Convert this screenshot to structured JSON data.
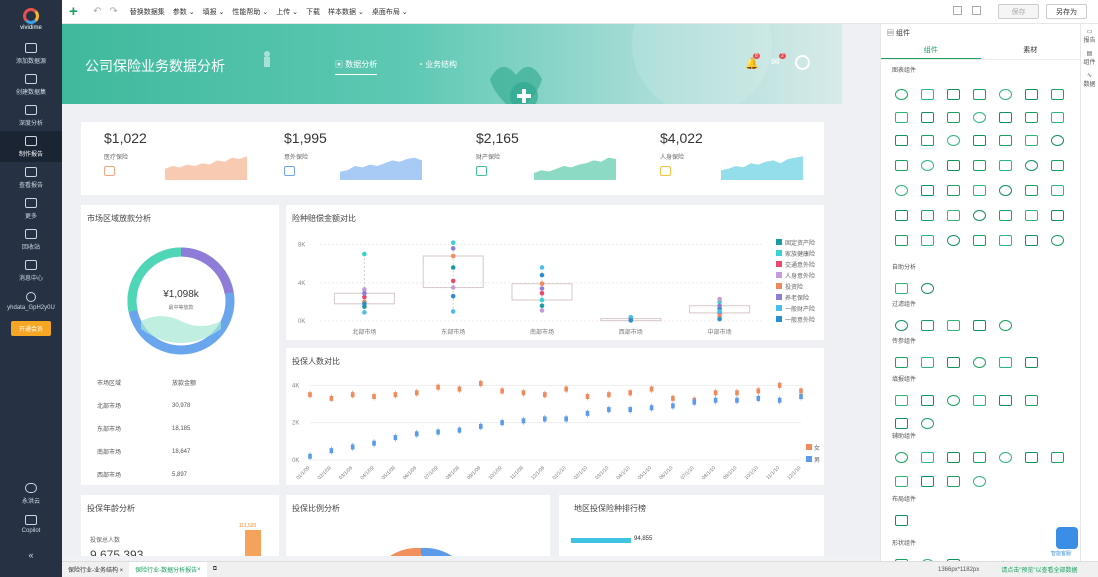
{
  "app": {
    "logo": "vividime"
  },
  "left_nav": [
    {
      "label": "添加数据源",
      "icon": "database-icon"
    },
    {
      "label": "创建数据集",
      "icon": "cube-icon"
    },
    {
      "label": "深度分析",
      "icon": "fan-icon"
    },
    {
      "label": "制作报告",
      "icon": "report-icon",
      "active": true
    },
    {
      "label": "查看报告",
      "icon": "view-report-icon"
    },
    {
      "label": "更多",
      "icon": "menu-icon"
    },
    {
      "label": "回收站",
      "icon": "trash-icon"
    },
    {
      "label": "消息中心",
      "icon": "bell-icon"
    },
    {
      "label": "yhdata_GpH2y0U",
      "icon": "user-icon"
    }
  ],
  "vip_label": "开通会员",
  "left_bottom": [
    {
      "label": "永洪云",
      "icon": "cloud-icon"
    },
    {
      "label": "Copilot",
      "icon": "copilot-icon"
    }
  ],
  "collapse_label": "«",
  "toolbar": {
    "menus": [
      "替换数据集",
      "参数 ⌄",
      "填报 ⌄",
      "性能帮助 ⌄",
      "上传 ⌄",
      "下载",
      "样本数据 ⌄",
      "桌面布局 ⌄"
    ],
    "save_label": "保存",
    "save_as_label": "另存为"
  },
  "banner": {
    "title": "公司保险业务数据分析",
    "tab1": "数据分析",
    "tab2": "业务结构",
    "badge1": "8",
    "badge2": "2"
  },
  "kpis": [
    {
      "value": "$1,022",
      "label": "医疗保险",
      "color": "#f4a77e"
    },
    {
      "value": "$1,995",
      "label": "意外保险",
      "color": "#6ea8ef"
    },
    {
      "value": "$2,165",
      "label": "财产保险",
      "color": "#3fc19b"
    },
    {
      "value": "$4,022",
      "label": "人身保险",
      "color": "#4cc8dd"
    }
  ],
  "region_card": {
    "title": "市场区域放款分析",
    "donut_value": "¥1,098k",
    "donut_sub": "最中等放款",
    "col1": "市场区域",
    "col2": "放款金额",
    "rows": [
      {
        "region": "北部市场",
        "amount": "30,978"
      },
      {
        "region": "东部市场",
        "amount": "18,185"
      },
      {
        "region": "南部市场",
        "amount": "18,647"
      },
      {
        "region": "西部市场",
        "amount": "5,897"
      }
    ]
  },
  "box_card": {
    "title": "险种赔偿金额对比",
    "yticks": [
      "8K",
      "4K",
      "0K"
    ],
    "xcats": [
      "北部市场",
      "东部市场",
      "南部市场",
      "西部市场",
      "中部市场"
    ],
    "legend": [
      {
        "name": "固定资产险",
        "color": "#1b9aa0"
      },
      {
        "name": "家族健康险",
        "color": "#3ad1d1"
      },
      {
        "name": "交通意外险",
        "color": "#e84a6a"
      },
      {
        "name": "人身意外险",
        "color": "#c69bd9"
      },
      {
        "name": "投资险",
        "color": "#f08a5d"
      },
      {
        "name": "养老保险",
        "color": "#8f7bd8"
      },
      {
        "name": "一般财产险",
        "color": "#4bbfe8"
      },
      {
        "name": "一般意外险",
        "color": "#2a8fd0"
      }
    ]
  },
  "line_card": {
    "title": "投保人数对比",
    "yticks": [
      "4K",
      "2K",
      "0K"
    ],
    "xticks": [
      "01/1/09",
      "02/1/09",
      "03/1/09",
      "04/1/09",
      "05/1/09",
      "06/1/09",
      "07/1/09",
      "08/1/09",
      "09/1/09",
      "10/1/09",
      "11/1/09",
      "12/1/09",
      "01/1/10",
      "02/1/10",
      "03/1/10",
      "04/1/10",
      "05/1/10",
      "06/1/10",
      "07/1/10",
      "08/1/10",
      "09/1/10",
      "10/1/10",
      "11/1/10",
      "12/1/10"
    ],
    "legend": [
      {
        "name": "女",
        "color": "#f08a5d"
      },
      {
        "name": "男",
        "color": "#5b9bea"
      }
    ]
  },
  "age_card": {
    "title": "投保年龄分析",
    "sub": "投保总人数",
    "value": "9,675,393",
    "bar_label": "111,520"
  },
  "pie_card": {
    "title": "投保比例分析"
  },
  "rank_card": {
    "title": "地区投保险种排行榜",
    "bar_value": "94,855"
  },
  "right_panel": {
    "header": "组件",
    "tab1": "组件",
    "tab2": "素材",
    "sections": [
      "图表组件",
      "自助分析",
      "过滤组件",
      "传参组件",
      "填报组件",
      "辅助组件",
      "布局组件",
      "形状组件"
    ]
  },
  "right_strip": [
    "报告",
    "组件",
    "数据"
  ],
  "assistant_label": "智能客服",
  "bottom_tabs": [
    {
      "label": "保险行业-业务结构",
      "active": false
    },
    {
      "label": "保险行业-数据分析报告",
      "active": true
    }
  ],
  "status": {
    "size": "1366px*1182px",
    "hint": "请点击\"预览\"以查看全部数据"
  },
  "chart_data": [
    {
      "type": "scatter",
      "title": "险种赔偿金额对比",
      "categories": [
        "北部市场",
        "东部市场",
        "南部市场",
        "西部市场",
        "中部市场"
      ],
      "series": [
        {
          "name": "固定资产险",
          "values": [
            1500,
            5600,
            1600,
            300,
            1300
          ]
        },
        {
          "name": "家族健康险",
          "values": [
            7000,
            8200,
            2200,
            150,
            2000
          ]
        },
        {
          "name": "交通意外险",
          "values": [
            2500,
            4200,
            2900,
            200,
            850
          ]
        },
        {
          "name": "人身意外险",
          "values": [
            3300,
            3500,
            1100,
            120,
            2300
          ]
        },
        {
          "name": "投资险",
          "values": [
            2000,
            6800,
            3900,
            250,
            500
          ]
        },
        {
          "name": "养老保险",
          "values": [
            2900,
            7600,
            3400,
            90,
            1600
          ]
        },
        {
          "name": "一般财产险",
          "values": [
            900,
            1000,
            5600,
            400,
            1000
          ]
        },
        {
          "name": "一般意外险",
          "values": [
            1800,
            2600,
            4800,
            60,
            200
          ]
        }
      ],
      "ylim": [
        0,
        9000
      ]
    },
    {
      "type": "line",
      "title": "投保人数对比",
      "x": [
        "01/1/09",
        "02/1/09",
        "03/1/09",
        "04/1/09",
        "05/1/09",
        "06/1/09",
        "07/1/09",
        "08/1/09",
        "09/1/09",
        "10/1/09",
        "11/1/09",
        "12/1/09",
        "01/1/10",
        "02/1/10",
        "03/1/10",
        "04/1/10",
        "05/1/10",
        "06/1/10",
        "07/1/10",
        "08/1/10",
        "09/1/10",
        "10/1/10",
        "11/1/10",
        "12/1/10"
      ],
      "series": [
        {
          "name": "女",
          "values": [
            3500,
            3300,
            3500,
            3400,
            3500,
            3600,
            3900,
            3800,
            4100,
            3700,
            3600,
            3500,
            3800,
            3400,
            3500,
            3600,
            3800,
            3300,
            3200,
            3600,
            3600,
            3700,
            4000,
            3700
          ]
        },
        {
          "name": "男",
          "values": [
            200,
            500,
            700,
            900,
            1200,
            1400,
            1500,
            1600,
            1800,
            2000,
            2100,
            2200,
            2200,
            2500,
            2700,
            2700,
            2800,
            2900,
            3100,
            3200,
            3200,
            3300,
            3200,
            3400
          ]
        }
      ],
      "ylim": [
        0,
        4500
      ]
    }
  ]
}
